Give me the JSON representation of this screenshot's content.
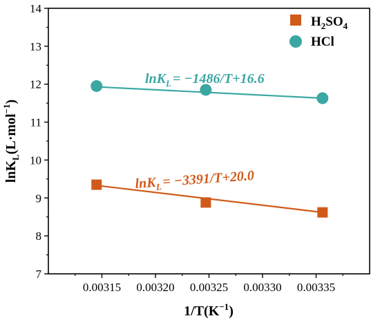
{
  "chart_data": {
    "type": "scatter",
    "xlabel": {
      "main": "1/T(K",
      "sup": "−1",
      "end": ")"
    },
    "ylabel": {
      "pre": "lnK",
      "sub": "L",
      "mid": "(L·mol",
      "sup": "−1",
      "end": ")"
    },
    "xlim": [
      0.0031,
      0.0034
    ],
    "ylim": [
      7,
      14
    ],
    "x_ticks": [
      "0.00315",
      "0.00320",
      "0.00325",
      "0.00330",
      "0.00335"
    ],
    "x_tick_values": [
      0.00315,
      0.0032,
      0.00325,
      0.0033,
      0.00335
    ],
    "y_ticks": [
      "7",
      "8",
      "9",
      "10",
      "11",
      "12",
      "13",
      "14"
    ],
    "y_tick_values": [
      7,
      8,
      9,
      10,
      11,
      12,
      13,
      14
    ],
    "grid": false,
    "legend_position": "top-right",
    "series": [
      {
        "name_parts": {
          "p1": "H",
          "s1": "2",
          "p2": "SO",
          "s2": "4"
        },
        "marker": "square",
        "color": "#d05a1a",
        "x": [
          0.003145,
          0.003247,
          0.003356
        ],
        "y": [
          9.35,
          8.88,
          8.62
        ],
        "fit": {
          "x": [
            0.003145,
            0.003356
          ],
          "y": [
            9.33,
            8.62
          ]
        },
        "equation": {
          "pre": "lnK",
          "sub": "L",
          "post": "= −3391/T+20.0"
        }
      },
      {
        "name": "HCl",
        "marker": "circle",
        "color": "#3aa7a3",
        "x": [
          0.003145,
          0.003247,
          0.003356
        ],
        "y": [
          11.95,
          11.85,
          11.63
        ],
        "fit": {
          "x": [
            0.003145,
            0.003356
          ],
          "y": [
            11.93,
            11.63
          ]
        },
        "equation": {
          "pre": "lnK",
          "sub": "L",
          "post": "= −1486/T+16.6"
        }
      }
    ]
  }
}
